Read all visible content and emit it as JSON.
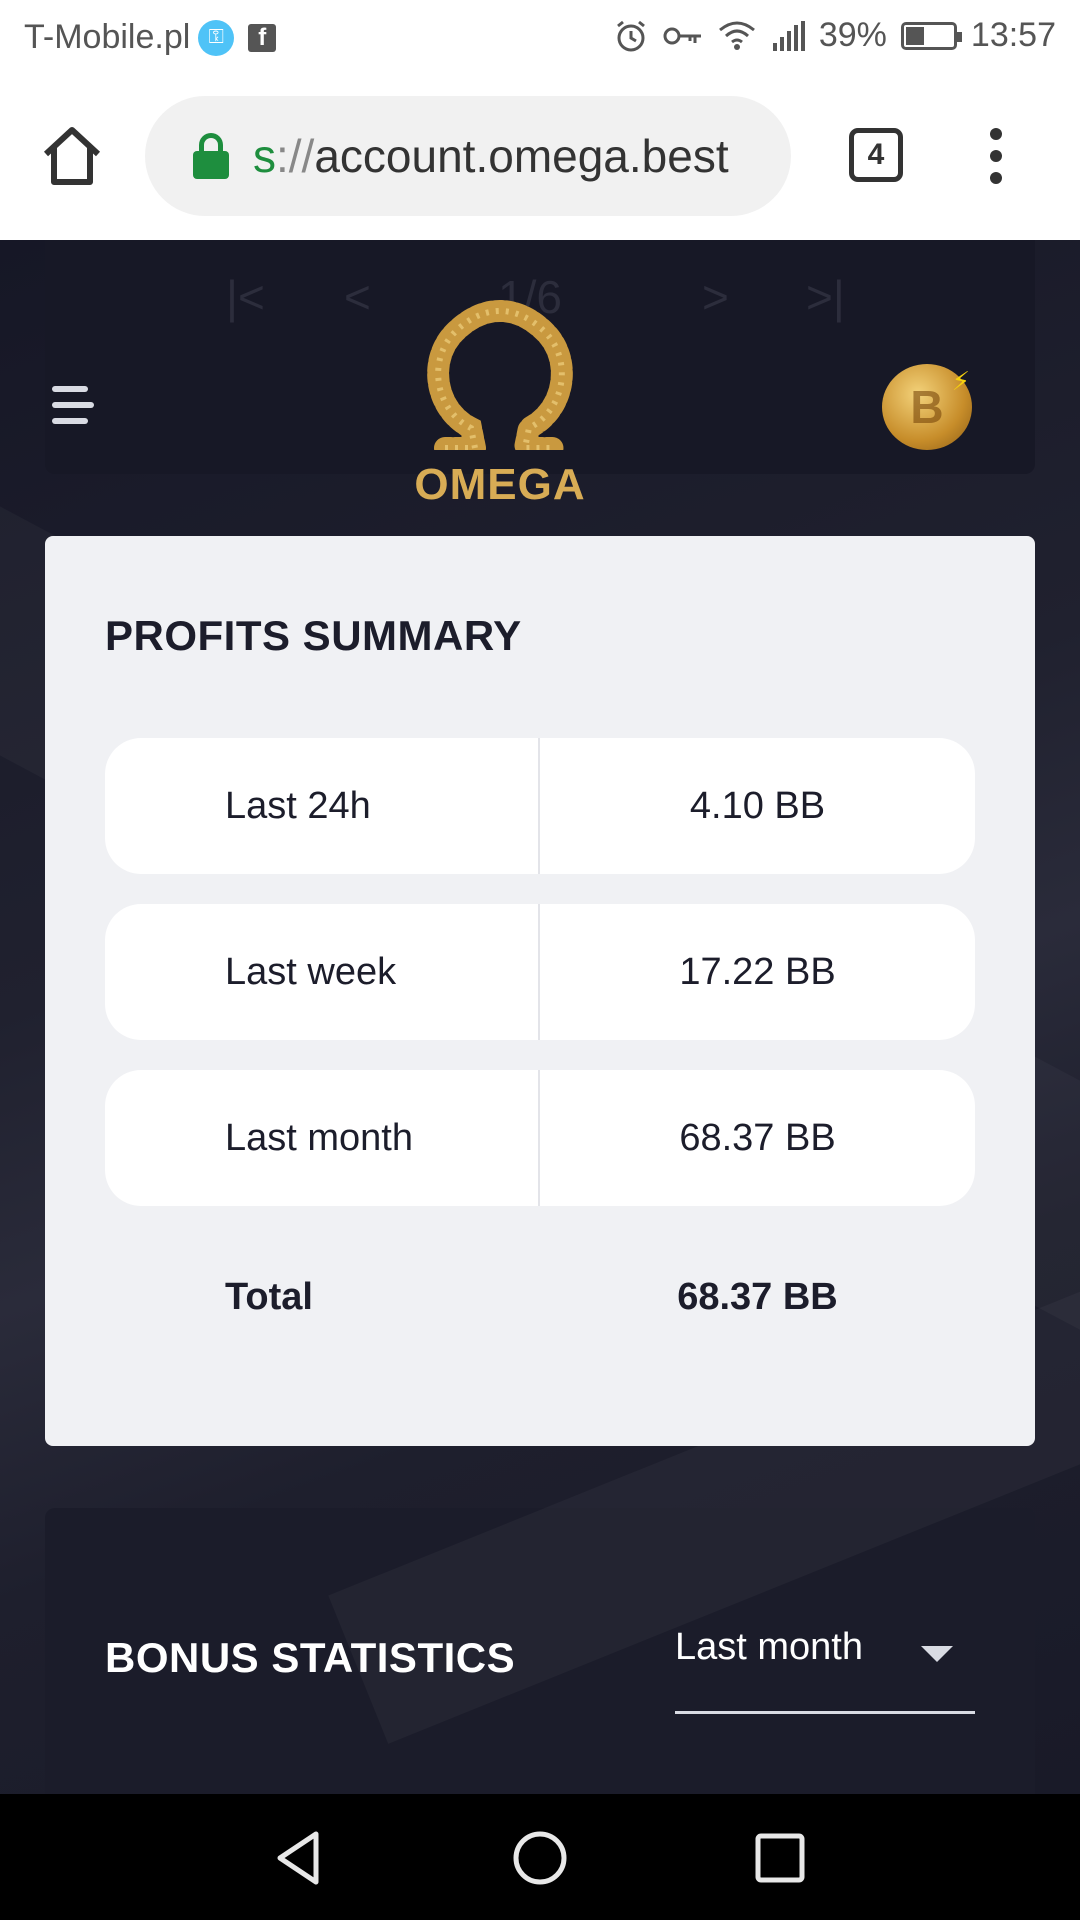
{
  "status_bar": {
    "carrier": "T-Mobile.pl",
    "battery_percent": "39%",
    "battery_level": 0.39,
    "time": "13:57"
  },
  "browser": {
    "url_scheme": "s",
    "url_separator": "://",
    "url_host": "account.omega.best",
    "tab_count": "4"
  },
  "pager": {
    "page_indicator": "1/6"
  },
  "header": {
    "logo_text": "OMEGA",
    "avatar_glyph": "B"
  },
  "profits": {
    "title": "PROFITS SUMMARY",
    "rows": [
      {
        "label": "Last 24h",
        "value": "4.10 BB"
      },
      {
        "label": "Last week",
        "value": "17.22 BB"
      },
      {
        "label": "Last month",
        "value": "68.37 BB"
      }
    ],
    "total_label": "Total",
    "total_value": "68.37 BB"
  },
  "bonus": {
    "title": "BONUS STATISTICS",
    "period_selected": "Last month"
  },
  "colors": {
    "accent_green": "#1e8e3e",
    "logo_gold": "#d8ac55",
    "page_bg": "#1c1d2b",
    "card_bg": "#f0f1f4"
  },
  "icons": {
    "home": "home-icon",
    "lock": "lock-icon",
    "menu": "more-vert-icon",
    "hamburger": "hamburger-icon",
    "back": "back-triangle-icon",
    "home_nav": "home-circle-icon",
    "recents": "recents-square-icon"
  }
}
